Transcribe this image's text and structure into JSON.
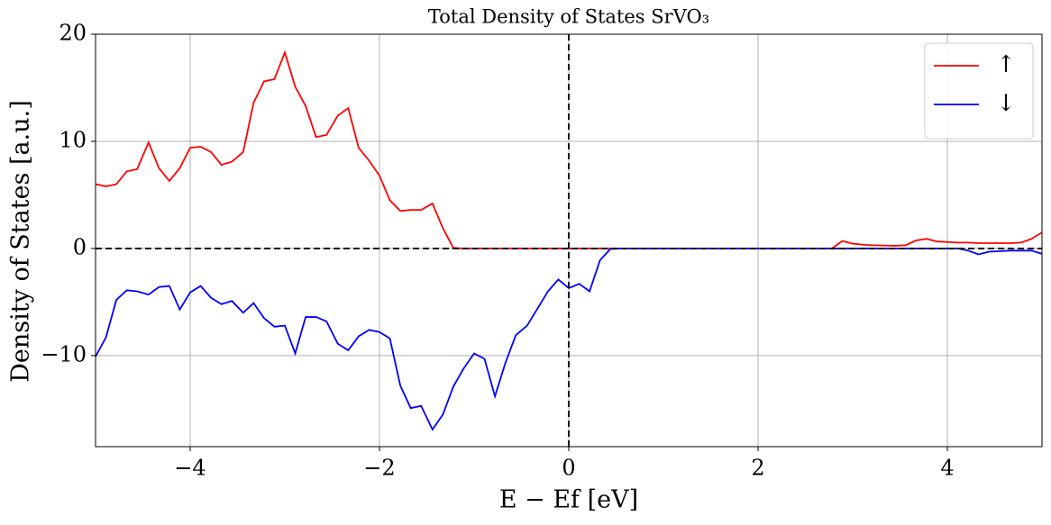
{
  "chart_data": {
    "type": "line",
    "title": "Total Density of States SrVO₃",
    "x_label": "E − Ef [eV]",
    "y_label": "Density of States [a.u.]",
    "x": [
      -5,
      -4.89,
      -4.78,
      -4.67,
      -4.56,
      -4.44,
      -4.33,
      -4.22,
      -4.11,
      -4,
      -3.89,
      -3.78,
      -3.67,
      -3.56,
      -3.44,
      -3.33,
      -3.22,
      -3.11,
      -3,
      -2.89,
      -2.78,
      -2.67,
      -2.56,
      -2.44,
      -2.33,
      -2.22,
      -2.11,
      -2,
      -1.89,
      -1.78,
      -1.67,
      -1.56,
      -1.44,
      -1.33,
      -1.22,
      -1.11,
      -1,
      -0.89,
      -0.78,
      -0.67,
      -0.56,
      -0.44,
      -0.33,
      -0.22,
      -0.11,
      0,
      0.11,
      0.22,
      0.33,
      0.44,
      0.56,
      0.67,
      0.78,
      0.89,
      1,
      1.11,
      1.22,
      1.33,
      1.44,
      1.56,
      1.67,
      1.78,
      1.89,
      2,
      2.11,
      2.22,
      2.33,
      2.44,
      2.56,
      2.67,
      2.78,
      2.89,
      3,
      3.11,
      3.22,
      3.33,
      3.44,
      3.56,
      3.67,
      3.78,
      3.89,
      4,
      4.11,
      4.22,
      4.33,
      4.44,
      4.56,
      4.67,
      4.78,
      4.89,
      5
    ],
    "series": [
      {
        "name": "↑",
        "color": "#ff0000",
        "values": [
          6.0,
          5.8,
          6.0,
          7.2,
          7.4,
          9.9,
          7.5,
          6.3,
          7.5,
          9.4,
          9.5,
          9.0,
          7.8,
          8.1,
          9.0,
          13.6,
          15.6,
          15.8,
          18.3,
          15.1,
          13.3,
          10.4,
          10.6,
          12.4,
          13.1,
          9.4,
          8.2,
          6.8,
          4.5,
          3.5,
          3.6,
          3.6,
          4.2,
          1.9,
          0.05,
          0,
          0,
          0,
          0,
          0,
          0,
          0,
          0,
          0,
          0,
          0,
          0,
          0,
          0,
          0,
          0,
          0,
          0,
          0,
          0,
          0,
          0,
          0,
          0,
          0,
          0,
          0,
          0,
          0,
          0,
          0,
          0,
          0,
          0,
          0,
          0,
          0.7,
          0.45,
          0.35,
          0.3,
          0.28,
          0.25,
          0.3,
          0.75,
          0.9,
          0.65,
          0.6,
          0.55,
          0.55,
          0.5,
          0.5,
          0.5,
          0.5,
          0.55,
          0.9,
          1.5
        ]
      },
      {
        "name": "↓",
        "color": "#0000ff",
        "values": [
          -10.1,
          -8.3,
          -4.8,
          -3.9,
          -4.0,
          -4.3,
          -3.6,
          -3.5,
          -5.7,
          -4.1,
          -3.5,
          -4.6,
          -5.2,
          -4.9,
          -6.0,
          -5.1,
          -6.5,
          -7.3,
          -7.2,
          -9.8,
          -6.4,
          -6.4,
          -6.8,
          -8.9,
          -9.5,
          -8.2,
          -7.6,
          -7.8,
          -8.4,
          -12.8,
          -14.9,
          -14.7,
          -16.9,
          -15.5,
          -12.9,
          -11.2,
          -9.8,
          -10.3,
          -13.8,
          -10.7,
          -8.1,
          -7.2,
          -5.6,
          -4.0,
          -2.9,
          -3.7,
          -3.3,
          -4.0,
          -1.1,
          -0.05,
          0,
          0,
          0,
          0,
          0,
          0,
          0,
          0,
          0,
          0,
          0,
          0,
          0,
          0,
          0,
          0,
          0,
          0,
          0,
          0,
          0,
          0,
          0,
          0,
          0,
          0,
          0,
          0,
          0,
          0,
          0,
          0,
          0,
          -0.2,
          -0.55,
          -0.3,
          -0.25,
          -0.2,
          -0.2,
          -0.2,
          -0.5
        ]
      }
    ],
    "xlim": [
      -5,
      5
    ],
    "ylim": [
      -18.5,
      20
    ],
    "xticks": [
      {
        "value": -4,
        "label": "−4"
      },
      {
        "value": -2,
        "label": "−2"
      },
      0,
      2,
      4
    ],
    "yticks": [
      {
        "value": -10,
        "label": "−10"
      },
      0,
      10,
      20
    ],
    "hline": 0,
    "vline": 0,
    "grid": true,
    "legend": "upper right"
  }
}
